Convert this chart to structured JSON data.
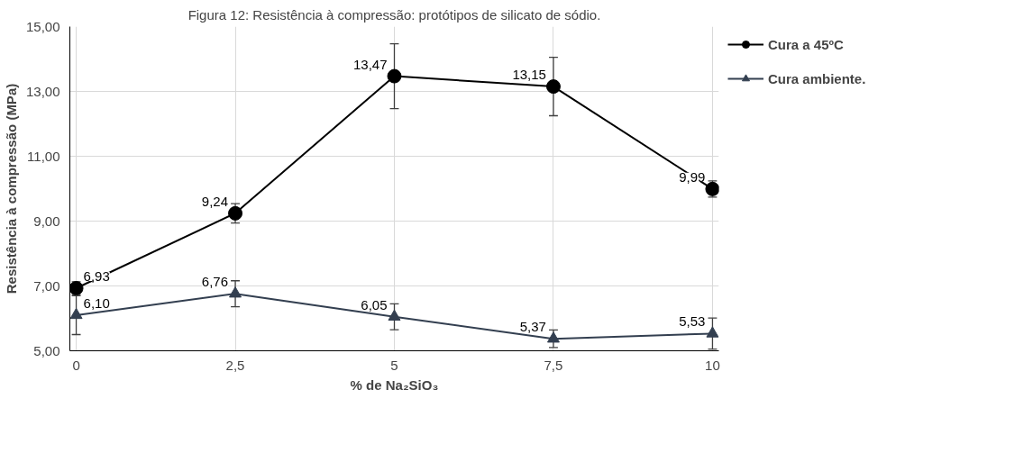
{
  "chart_data": {
    "type": "line",
    "title": "Figura 12: Resistência à compressão: protótipos de silicato de sódio.",
    "xlabel": "% de Na₂SiO₃",
    "ylabel": "Resistência à compressão (MPa)",
    "x": [
      0,
      2.5,
      5,
      7.5,
      10
    ],
    "xlim": [
      -0.1,
      10.1
    ],
    "xticks": [
      {
        "value": 0,
        "label": "0"
      },
      {
        "value": 2.5,
        "label": "2,5"
      },
      {
        "value": 5,
        "label": "5"
      },
      {
        "value": 7.5,
        "label": "7,5"
      },
      {
        "value": 10,
        "label": "10"
      }
    ],
    "ylim": [
      5,
      15
    ],
    "yticks": [
      {
        "value": 5,
        "label": "5,00"
      },
      {
        "value": 7,
        "label": "7,00"
      },
      {
        "value": 9,
        "label": "9,00"
      },
      {
        "value": 11,
        "label": "11,00"
      },
      {
        "value": 13,
        "label": "13,00"
      },
      {
        "value": 15,
        "label": "15,00"
      }
    ],
    "grid": true,
    "legend": "right",
    "line_style": "solid",
    "series": [
      {
        "name": "Cura a 45ºC",
        "color": "#000000",
        "marker": "circle",
        "values": [
          6.93,
          9.24,
          13.47,
          13.15,
          9.99
        ],
        "errors": [
          0.2,
          0.3,
          1.0,
          0.9,
          0.25
        ],
        "value_labels": [
          "6,93",
          "9,24",
          "13,47",
          "13,15",
          "9,99"
        ]
      },
      {
        "name": "Cura ambiente.",
        "color": "#333f50",
        "marker": "triangle",
        "values": [
          6.1,
          6.76,
          6.05,
          5.37,
          5.53
        ],
        "errors": [
          0.6,
          0.4,
          0.4,
          0.27,
          0.48
        ],
        "value_labels": [
          "6,10",
          "6,76",
          "6,05",
          "5,37",
          "5,53"
        ]
      }
    ]
  }
}
